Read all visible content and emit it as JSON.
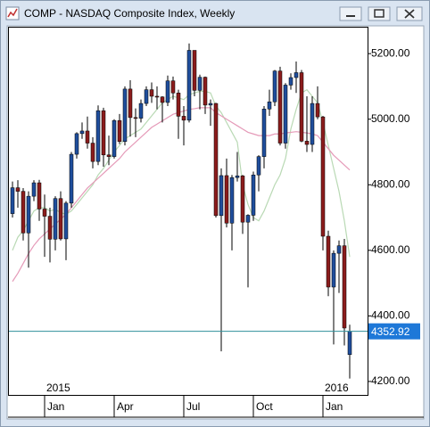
{
  "chart_data": {
    "type": "candlestick",
    "title": "COMP - NASDAQ Composite Index, Weekly",
    "categories": [
      null,
      null,
      null,
      null,
      null,
      null,
      "Jan",
      null,
      null,
      null,
      null,
      null,
      null,
      null,
      null,
      null,
      null,
      null,
      null,
      "Apr",
      null,
      null,
      null,
      null,
      null,
      null,
      null,
      null,
      null,
      null,
      null,
      null,
      "Jul",
      null,
      null,
      null,
      null,
      null,
      null,
      null,
      null,
      null,
      null,
      null,
      null,
      "Oct",
      null,
      null,
      null,
      null,
      null,
      null,
      null,
      null,
      null,
      null,
      null,
      null,
      "Jan",
      null,
      null,
      null,
      null,
      null
    ],
    "year_labels": [
      {
        "index": 6,
        "label": "2015"
      },
      {
        "index": 58,
        "label": "2016"
      }
    ],
    "open": [
      4712,
      4791,
      4780,
      4653,
      4765,
      4806,
      4726,
      4704,
      4634,
      4758,
      4635,
      4744,
      4893,
      4956,
      4964,
      4927,
      4871,
      5026,
      4891,
      4886,
      4996,
      4932,
      5092,
      5005,
      5003,
      5048,
      5090,
      5070,
      5068,
      5051,
      5117,
      5080,
      5009,
      4997,
      5210,
      5088,
      5128,
      5043,
      5048,
      4706,
      4828,
      4683,
      4822,
      4827,
      4686,
      4707,
      4830,
      4886,
      5031,
      5053,
      5147,
      4927,
      5104,
      5127,
      5142,
      4933,
      4923,
      5048,
      5007,
      4643,
      4488,
      4591,
      4614,
      4282
    ],
    "high": [
      4810,
      4814,
      4790,
      4780,
      4814,
      4815,
      4770,
      4730,
      4765,
      4780,
      4750,
      4900,
      4960,
      4990,
      5008,
      4945,
      5042,
      5035,
      4950,
      5000,
      5016,
      5100,
      5119,
      5033,
      5060,
      5100,
      5112,
      5100,
      5070,
      5133,
      5130,
      5090,
      5040,
      5231,
      5205,
      5136,
      5130,
      5060,
      5050,
      4850,
      4880,
      4830,
      4900,
      4830,
      4710,
      4840,
      4890,
      5040,
      5090,
      5150,
      5160,
      5110,
      5140,
      5176,
      5150,
      5070,
      5070,
      5100,
      5010,
      4660,
      4600,
      4630,
      4635,
      4373
    ],
    "low": [
      4700,
      4730,
      4630,
      4547,
      4750,
      4690,
      4580,
      4563,
      4600,
      4630,
      4570,
      4730,
      4880,
      4940,
      4910,
      4850,
      4860,
      4855,
      4860,
      4880,
      4924,
      4920,
      4947,
      4945,
      4990,
      5040,
      5050,
      5030,
      4990,
      5040,
      5060,
      4940,
      4920,
      4990,
      5070,
      5030,
      5016,
      4980,
      4700,
      4292,
      4670,
      4600,
      4810,
      4650,
      4487,
      4690,
      4780,
      4850,
      5010,
      5040,
      4920,
      4910,
      5090,
      5080,
      4930,
      4900,
      4900,
      5000,
      4600,
      4460,
      4313,
      4470,
      4310,
      4209
    ],
    "close": [
      4791,
      4780,
      4653,
      4765,
      4806,
      4726,
      4704,
      4634,
      4758,
      4635,
      4744,
      4893,
      4956,
      4964,
      4927,
      4871,
      5026,
      4891,
      4886,
      4996,
      4932,
      5092,
      5005,
      5003,
      5048,
      5090,
      5070,
      5068,
      5051,
      5117,
      5080,
      5009,
      4997,
      5210,
      5088,
      5128,
      5043,
      5048,
      4706,
      4828,
      4683,
      4822,
      4827,
      4686,
      4707,
      4830,
      4886,
      5031,
      5053,
      5147,
      4927,
      5104,
      5127,
      5142,
      4933,
      4923,
      5048,
      5007,
      4643,
      4488,
      4591,
      4614,
      4363,
      4352.92
    ],
    "up_color": "#1f4e9c",
    "down_color": "#8b1c1c",
    "moving_averages": [
      {
        "color": "#b9d9b4",
        "values": [
          4600,
          4640,
          4660,
          4690,
          4720,
          4730,
          4730,
          4720,
          4725,
          4715,
          4710,
          4720,
          4740,
          4760,
          4780,
          4800,
          4830,
          4850,
          4875,
          4900,
          4920,
          4940,
          4950,
          4960,
          4970,
          4990,
          5010,
          5030,
          5050,
          5060,
          5070,
          5065,
          5060,
          5075,
          5080,
          5085,
          5085,
          5080,
          5040,
          5020,
          4990,
          4960,
          4930,
          4800,
          4740,
          4700,
          4690,
          4720,
          4760,
          4800,
          4830,
          4880,
          4970,
          5030,
          5080,
          5090,
          5070,
          5050,
          4990,
          4920,
          4850,
          4780,
          4690,
          4580
        ]
      },
      {
        "color": "#e59ab8",
        "values": [
          4505,
          4530,
          4560,
          4590,
          4615,
          4635,
          4650,
          4665,
          4680,
          4695,
          4710,
          4730,
          4750,
          4770,
          4790,
          4805,
          4820,
          4835,
          4850,
          4865,
          4880,
          4900,
          4915,
          4930,
          4945,
          4960,
          4975,
          4985,
          4995,
          5005,
          5015,
          5020,
          5025,
          5030,
          5032,
          5035,
          5035,
          5035,
          5020,
          5010,
          5000,
          4990,
          4980,
          4970,
          4960,
          4955,
          4950,
          4950,
          4950,
          4955,
          4955,
          4958,
          4960,
          4962,
          4960,
          4958,
          4955,
          4950,
          4930,
          4910,
          4890,
          4875,
          4860,
          4845
        ]
      }
    ],
    "last_price": 4352.92,
    "last_price_color": "#2f8f9a",
    "ylim": [
      4159,
      5282
    ],
    "yticks": [
      {
        "value": 4200,
        "label": "4200.00"
      },
      {
        "value": 4400,
        "label": "4400.00"
      },
      {
        "value": 4600,
        "label": "4600.00"
      },
      {
        "value": 4800,
        "label": "4800.00"
      },
      {
        "value": 5000,
        "label": "5000.00"
      },
      {
        "value": 5200,
        "label": "5200.00"
      }
    ]
  }
}
